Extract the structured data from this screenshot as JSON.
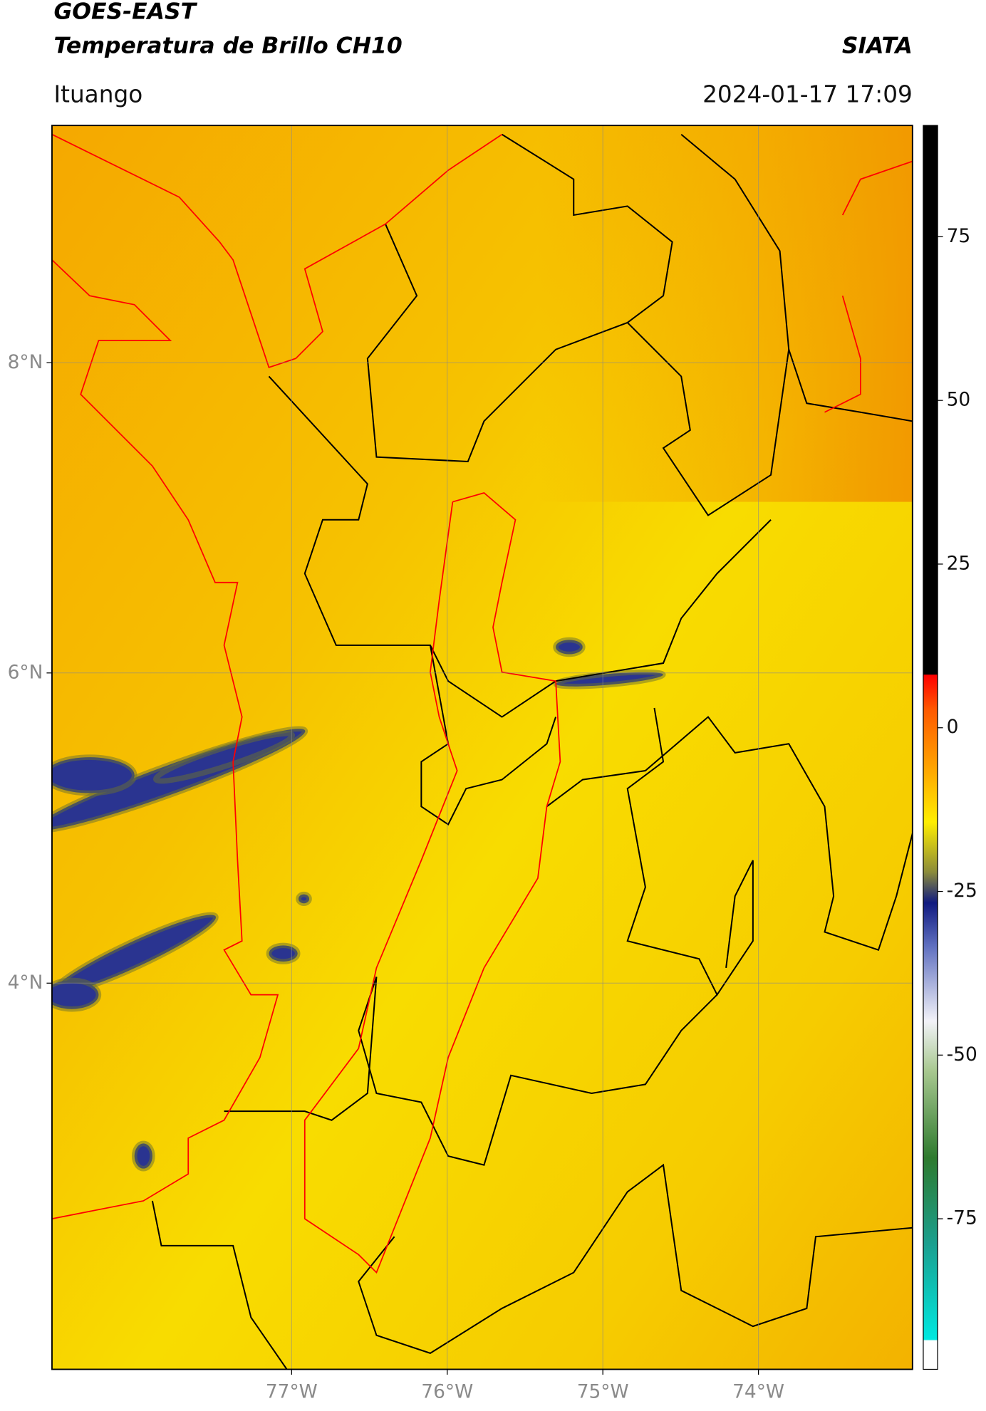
{
  "header": {
    "title_line1": "GOES-EAST",
    "title_line2": "Temperatura de Brillo CH10",
    "source": "SIATA",
    "location": "Ituango",
    "timestamp": "2024-01-17 17:09"
  },
  "map": {
    "xlim": [
      -78.54,
      -73.01
    ],
    "ylim": [
      1.51,
      9.53
    ],
    "xticks": [
      {
        "value": -77,
        "label": "77°W"
      },
      {
        "value": -76,
        "label": "76°W"
      },
      {
        "value": -75,
        "label": "75°W"
      },
      {
        "value": -74,
        "label": "74°W"
      }
    ],
    "yticks": [
      {
        "value": 8,
        "label": "8°N"
      },
      {
        "value": 6,
        "label": "6°N"
      },
      {
        "value": 4,
        "label": "4°N"
      }
    ],
    "grid": true
  },
  "colorbar": {
    "range": [
      -98,
      92
    ],
    "ticks": [
      75,
      50,
      25,
      0,
      -25,
      -50,
      -75
    ]
  }
}
